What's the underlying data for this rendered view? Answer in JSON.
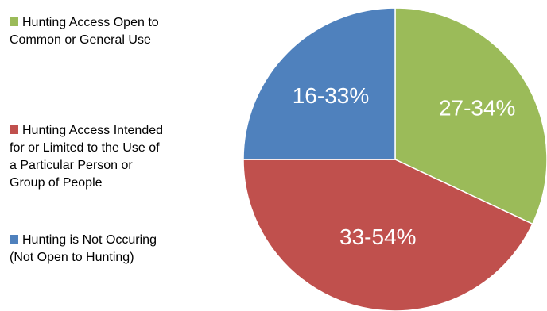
{
  "chart_data": {
    "type": "pie",
    "title": "",
    "slices": [
      {
        "name": "Hunting Access Open to Common or General Use",
        "legend_lines": [
          "Hunting Access Open to",
          "Common or General Use"
        ],
        "label": "27-34%",
        "value": 32,
        "color": "#9BBB59"
      },
      {
        "name": "Hunting Access Intended for or Limited to the Use of a Particular Person or Group of People",
        "legend_lines": [
          "Hunting Access Intended",
          "for or Limited to the Use of",
          "a Particular Person or",
          "Group of People"
        ],
        "label": "33-54%",
        "value": 43,
        "color": "#C0504D"
      },
      {
        "name": "Hunting is Not Occuring (Not Open to Hunting)",
        "legend_lines": [
          "Hunting is Not Occuring",
          "(Not Open to Hunting)"
        ],
        "label": "16-33%",
        "value": 25,
        "color": "#4F81BD"
      }
    ],
    "start_angle_deg": 0,
    "direction": "clockwise",
    "legend_position": "left"
  }
}
